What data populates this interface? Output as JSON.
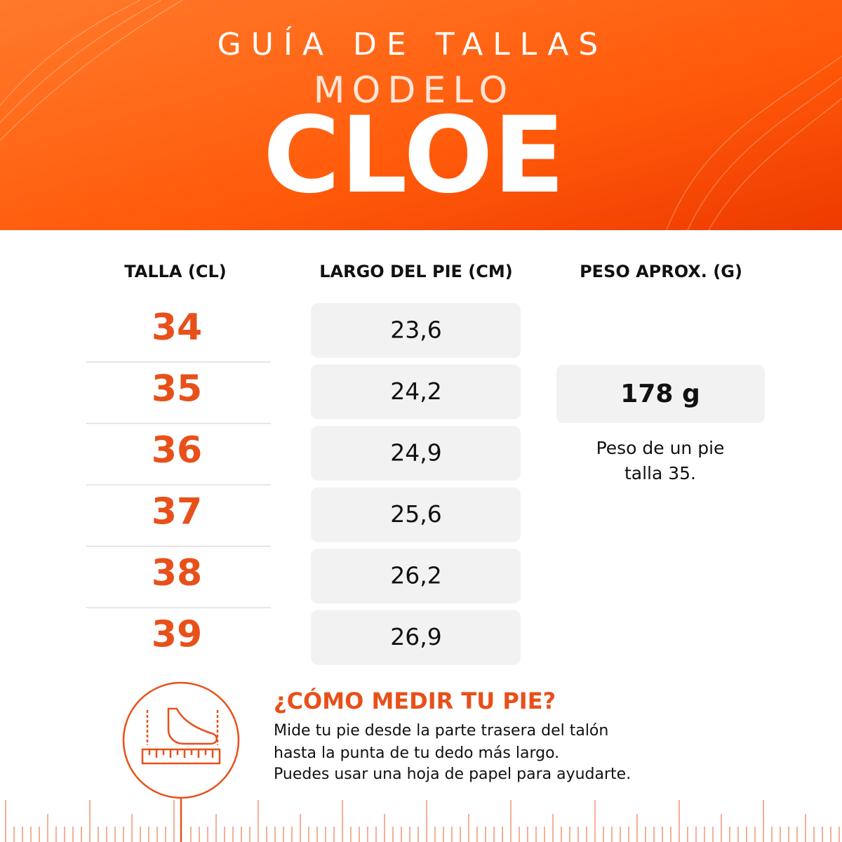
{
  "header": {
    "line1": "GUÍA DE TALLAS",
    "line2": "MODELO",
    "line3": "CLOE"
  },
  "table": {
    "headers": [
      "TALLA (CL)",
      "LARGO DEL PIE (CM)",
      "PESO APROX. (G)"
    ],
    "rows": [
      [
        "34",
        "23,6"
      ],
      [
        "35",
        "24,2"
      ],
      [
        "36",
        "24,9"
      ],
      [
        "37",
        "25,6"
      ],
      [
        "38",
        "26,2"
      ],
      [
        "39",
        "26,9"
      ]
    ]
  },
  "weight": {
    "value": "178 g",
    "note": [
      "Peso de un pie",
      "talla 35."
    ]
  },
  "howto": {
    "title": "¿CÓMO MEDIR TU PIE?",
    "lines": [
      "Mide tu pie desde la parte trasera del talón",
      "hasta la punta de tu dedo más largo.",
      "Puedes usar una hoja de papel para ayudarte."
    ]
  }
}
